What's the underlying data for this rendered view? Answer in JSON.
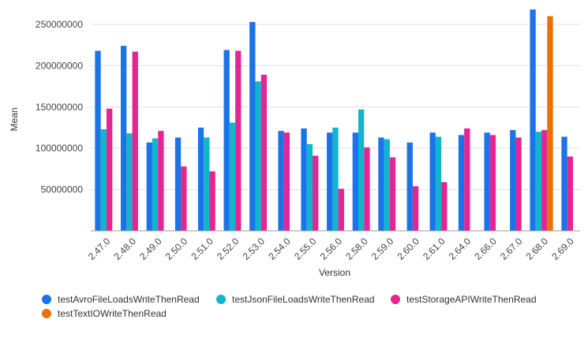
{
  "chart_data": {
    "type": "bar",
    "title": "",
    "xlabel": "Version",
    "ylabel": "Mean",
    "ylim": [
      0,
      270000000
    ],
    "yticks": [
      50000000,
      100000000,
      150000000,
      200000000,
      250000000
    ],
    "ytick_labels": [
      "50000000",
      "100000000",
      "150000000",
      "200000000",
      "250000000"
    ],
    "grid": true,
    "legend_position": "bottom",
    "categories": [
      "2.47.0",
      "2.48.0",
      "2.49.0",
      "2.50.0",
      "2.51.0",
      "2.52.0",
      "2.53.0",
      "2.54.0",
      "2.55.0",
      "2.56.0",
      "2.58.0",
      "2.59.0",
      "2.60.0",
      "2.61.0",
      "2.64.0",
      "2.66.0",
      "2.67.0",
      "2.68.0",
      "2.69.0"
    ],
    "series": [
      {
        "name": "testAvroFileLoadsWriteThenRead",
        "color": "#1a73e8",
        "values": [
          218000000,
          224000000,
          107000000,
          113000000,
          125000000,
          219000000,
          253000000,
          121000000,
          124000000,
          119000000,
          119000000,
          113000000,
          107000000,
          119000000,
          116000000,
          119000000,
          122000000,
          268000000,
          114000000
        ]
      },
      {
        "name": "testJsonFileLoadsWriteThenRead",
        "color": "#12b5cb",
        "values": [
          123000000,
          118000000,
          112000000,
          null,
          113000000,
          131000000,
          181000000,
          null,
          105000000,
          125000000,
          147000000,
          111000000,
          null,
          114000000,
          null,
          null,
          null,
          120000000,
          null
        ]
      },
      {
        "name": "testStorageAPIWriteThenRead",
        "color": "#e52592",
        "values": [
          148000000,
          217000000,
          121000000,
          78000000,
          72000000,
          218000000,
          189000000,
          119000000,
          91000000,
          51000000,
          101000000,
          89000000,
          54000000,
          59000000,
          124000000,
          116000000,
          113000000,
          122000000,
          90000000
        ]
      },
      {
        "name": "testTextIOWriteThenRead",
        "color": "#e8710a",
        "values": [
          null,
          null,
          null,
          null,
          null,
          null,
          null,
          null,
          null,
          null,
          null,
          null,
          null,
          null,
          null,
          null,
          null,
          260000000,
          null
        ]
      }
    ]
  }
}
